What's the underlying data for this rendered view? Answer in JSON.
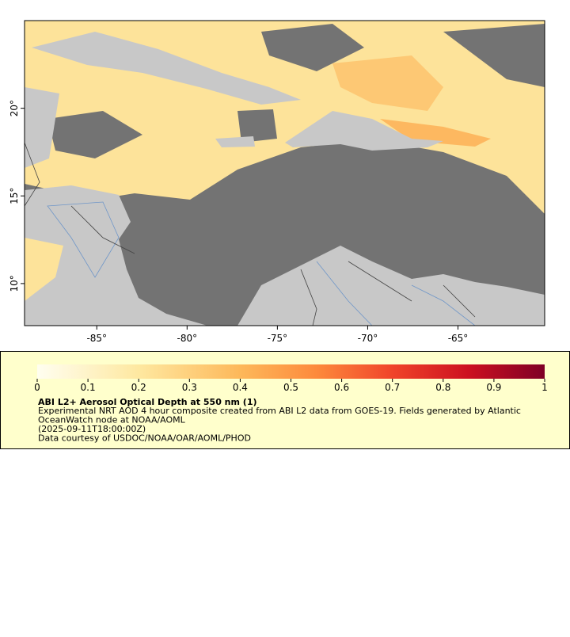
{
  "map": {
    "xlim": [
      -89,
      -60.2
    ],
    "ylim": [
      7.6,
      25
    ],
    "x_ticks": [
      {
        "value": -85,
        "label": "-85°"
      },
      {
        "value": -80,
        "label": "-80°"
      },
      {
        "value": -75,
        "label": "-75°"
      },
      {
        "value": -70,
        "label": "-70°"
      },
      {
        "value": -65,
        "label": "-65°"
      }
    ],
    "y_ticks": [
      {
        "value": 20,
        "label": "20°"
      },
      {
        "value": 15,
        "label": "15°"
      },
      {
        "value": 10,
        "label": "10°"
      }
    ]
  },
  "colorbar": {
    "range": [
      0,
      1
    ],
    "ticks": [
      0,
      0.1,
      0.2,
      0.3,
      0.4,
      0.5,
      0.6,
      0.7,
      0.8,
      0.9,
      1
    ]
  },
  "legend": {
    "title": "ABI L2+ Aerosol Optical Depth at 550 nm (1)",
    "lines": [
      "Experimental NRT AOD 4 hour composite created from ABI L2 data from GOES-19. Fields generated by Atlantic",
      "OceanWatch node at NOAA/AOML",
      "(2025-09-11T18:00:00Z)",
      "Data courtesy of USDOC/NOAA/OAR/AOML/PHOD"
    ]
  }
}
